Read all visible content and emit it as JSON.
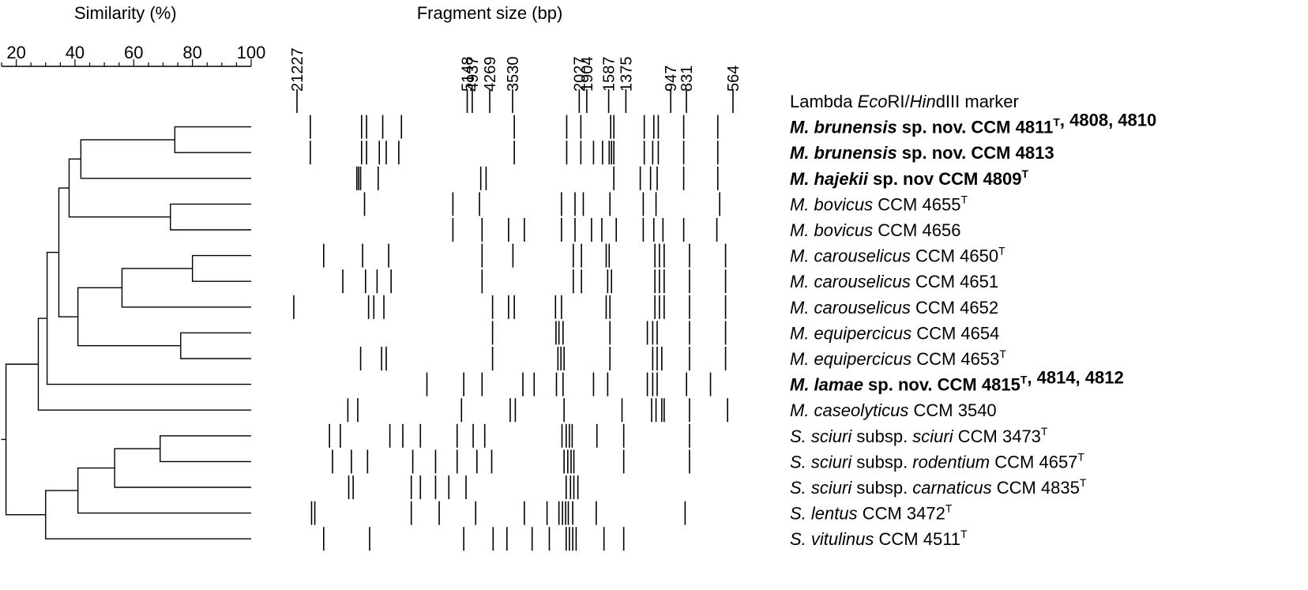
{
  "similarity_axis": {
    "title": "Similarity (%)",
    "min": 15,
    "max": 100,
    "ticks": [
      20,
      40,
      60,
      80,
      100
    ]
  },
  "fragment_axis": {
    "title": "Fragment size (bp)",
    "markers": [
      21227,
      5148,
      4937,
      4269,
      3530,
      2027,
      1904,
      1587,
      1375,
      947,
      831,
      564
    ]
  },
  "rows": [
    {
      "segments": [
        {
          "text": "Lambda "
        },
        {
          "text": "Eco",
          "italic": true
        },
        {
          "text": "RI/"
        },
        {
          "text": "Hin",
          "italic": true
        },
        {
          "text": "dIII marker"
        }
      ],
      "bold": false
    },
    {
      "segments": [
        {
          "text": "M. brunensis",
          "italic": true
        },
        {
          "text": " sp. nov. CCM 4811"
        },
        {
          "text": "T",
          "sup": true
        },
        {
          "text": ", 4808, 4810"
        }
      ],
      "bold": true
    },
    {
      "segments": [
        {
          "text": "M. brunensis",
          "italic": true
        },
        {
          "text": " sp. nov. CCM 4813"
        }
      ],
      "bold": true
    },
    {
      "segments": [
        {
          "text": "M. hajekii",
          "italic": true
        },
        {
          "text": " sp. nov CCM 4809"
        },
        {
          "text": "T",
          "sup": true
        }
      ],
      "bold": true
    },
    {
      "segments": [
        {
          "text": "M. bovicus",
          "italic": true
        },
        {
          "text": " CCM 4655"
        },
        {
          "text": "T",
          "sup": true
        }
      ],
      "bold": false
    },
    {
      "segments": [
        {
          "text": "M. bovicus",
          "italic": true
        },
        {
          "text": " CCM 4656"
        }
      ],
      "bold": false
    },
    {
      "segments": [
        {
          "text": "M. carouselicus",
          "italic": true
        },
        {
          "text": " CCM 4650"
        },
        {
          "text": "T",
          "sup": true
        }
      ],
      "bold": false
    },
    {
      "segments": [
        {
          "text": "M. carouselicus",
          "italic": true
        },
        {
          "text": " CCM 4651"
        }
      ],
      "bold": false
    },
    {
      "segments": [
        {
          "text": "M. carouselicus",
          "italic": true
        },
        {
          "text": " CCM 4652"
        }
      ],
      "bold": false
    },
    {
      "segments": [
        {
          "text": "M. equipercicus",
          "italic": true
        },
        {
          "text": " CCM 4654"
        }
      ],
      "bold": false
    },
    {
      "segments": [
        {
          "text": "M. equipercicus",
          "italic": true
        },
        {
          "text": " CCM 4653"
        },
        {
          "text": "T",
          "sup": true
        }
      ],
      "bold": false
    },
    {
      "segments": [
        {
          "text": "M. lamae",
          "italic": true
        },
        {
          "text": " sp. nov. CCM 4815"
        },
        {
          "text": "T",
          "sup": true
        },
        {
          "text": ", 4814, 4812"
        }
      ],
      "bold": true
    },
    {
      "segments": [
        {
          "text": "M. caseolyticus",
          "italic": true
        },
        {
          "text": " CCM 3540"
        }
      ],
      "bold": false
    },
    {
      "segments": [
        {
          "text": "S. sciuri",
          "italic": true
        },
        {
          "text": " subsp. "
        },
        {
          "text": "sciuri",
          "italic": true
        },
        {
          "text": " CCM 3473"
        },
        {
          "text": "T",
          "sup": true
        }
      ],
      "bold": false
    },
    {
      "segments": [
        {
          "text": "S. sciuri",
          "italic": true
        },
        {
          "text": " subsp. "
        },
        {
          "text": "rodentium",
          "italic": true
        },
        {
          "text": " CCM 4657"
        },
        {
          "text": "T",
          "sup": true
        }
      ],
      "bold": false
    },
    {
      "segments": [
        {
          "text": "S. sciuri",
          "italic": true
        },
        {
          "text": " subsp. "
        },
        {
          "text": "carnaticus",
          "italic": true
        },
        {
          "text": " CCM 4835"
        },
        {
          "text": "T",
          "sup": true
        }
      ],
      "bold": false
    },
    {
      "segments": [
        {
          "text": "S. lentus",
          "italic": true
        },
        {
          "text": " CCM 3472"
        },
        {
          "text": "T",
          "sup": true
        }
      ],
      "bold": false
    },
    {
      "segments": [
        {
          "text": "S. vitulinus",
          "italic": true
        },
        {
          "text": " CCM 4511"
        },
        {
          "text": "T",
          "sup": true
        }
      ],
      "bold": false
    }
  ],
  "bands": [
    [
      21227,
      5148,
      4937,
      4269,
      3530,
      2027,
      1904,
      1587,
      1375,
      947,
      831,
      564
    ],
    [
      19000,
      12400,
      11900,
      10400,
      8900,
      3480,
      2250,
      2000,
      1560,
      1520,
      1180,
      1090,
      1050,
      850,
      640
    ],
    [
      19000,
      12400,
      11900,
      10700,
      10100,
      9100,
      3480,
      2250,
      2000,
      1800,
      1670,
      1580,
      1550,
      1520,
      1180,
      1100,
      1050,
      850,
      640
    ],
    [
      12900,
      12700,
      12500,
      10800,
      4600,
      4400,
      1520,
      1220,
      1120,
      1060,
      850,
      640
    ],
    [
      12100,
      5800,
      4650,
      2350,
      2100,
      1960,
      1570,
      1190,
      1070,
      630
    ],
    [
      5800,
      4550,
      3650,
      3200,
      2350,
      2100,
      1830,
      1680,
      1490,
      1190,
      1090,
      1010,
      850,
      645
    ],
    [
      17000,
      12300,
      9900,
      4550,
      3520,
      2130,
      1990,
      1620,
      1580,
      1080,
      1040,
      1000,
      810,
      600
    ],
    [
      14500,
      12000,
      10900,
      9700,
      4550,
      2130,
      1990,
      1600,
      1550,
      1080,
      1040,
      1000,
      810,
      600
    ],
    [
      21800,
      11700,
      11200,
      10300,
      4170,
      3650,
      3480,
      2470,
      2350,
      1620,
      1570,
      1080,
      1040,
      1000,
      810,
      600
    ],
    [
      4170,
      2460,
      2400,
      2320,
      1570,
      1150,
      1100,
      1060,
      810,
      600
    ],
    [
      12500,
      10500,
      10100,
      4170,
      2420,
      2360,
      2300,
      1570,
      1100,
      1060,
      1020,
      810,
      600
    ],
    [
      7200,
      5300,
      4550,
      3240,
      2950,
      2450,
      2320,
      1800,
      1600,
      1150,
      1100,
      1060,
      830,
      680
    ],
    [
      13900,
      12800,
      5400,
      3600,
      3450,
      2300,
      1420,
      1110,
      1070,
      1020,
      1000,
      810,
      590
    ],
    [
      16200,
      14800,
      9800,
      8800,
      7600,
      5600,
      4900,
      4450,
      2340,
      2260,
      2200,
      2150,
      1750,
      1400,
      810
    ],
    [
      15800,
      13500,
      11800,
      8100,
      6700,
      5600,
      4750,
      4200,
      2300,
      2230,
      2170,
      2120,
      1400,
      810
    ],
    [
      13800,
      13300,
      8200,
      7600,
      6700,
      6000,
      5200,
      2260,
      2180,
      2120,
      2050
    ],
    [
      18800,
      18300,
      8200,
      6500,
      4800,
      3200,
      2650,
      2400,
      2330,
      2270,
      2220,
      2140,
      1760,
      840
    ],
    [
      17000,
      11600,
      5300,
      4150,
      3700,
      3000,
      2600,
      2260,
      2200,
      2140,
      2080,
      1650,
      1400
    ]
  ],
  "dendrogram": [
    {
      "a": 1,
      "b": 2,
      "sim": 74
    },
    {
      "a": 4,
      "b": 5,
      "sim": 72.5
    },
    {
      "a": 6,
      "b": 7,
      "sim": 80
    },
    {
      "a": 9,
      "b": 10,
      "sim": 76
    },
    {
      "a": 13,
      "b": 14,
      "sim": 69
    },
    {
      "a": "n0",
      "b": 3,
      "sim": 42
    },
    {
      "a": "n2",
      "b": 8,
      "sim": 56
    },
    {
      "a": "n4",
      "b": 15,
      "sim": 53.5
    },
    {
      "a": "n5",
      "b": "n1",
      "sim": 38
    },
    {
      "a": "n6",
      "b": "n3",
      "sim": 41
    },
    {
      "a": "n7",
      "b": 16,
      "sim": 41
    },
    {
      "a": "n8",
      "b": "n9",
      "sim": 34.5
    },
    {
      "a": "n11",
      "b": 11,
      "sim": 30.5
    },
    {
      "a": "n12",
      "b": 12,
      "sim": 27.5
    },
    {
      "a": "n10",
      "b": 17,
      "sim": 30
    },
    {
      "a": "n13",
      "b": "n14",
      "sim": 16.5
    }
  ]
}
